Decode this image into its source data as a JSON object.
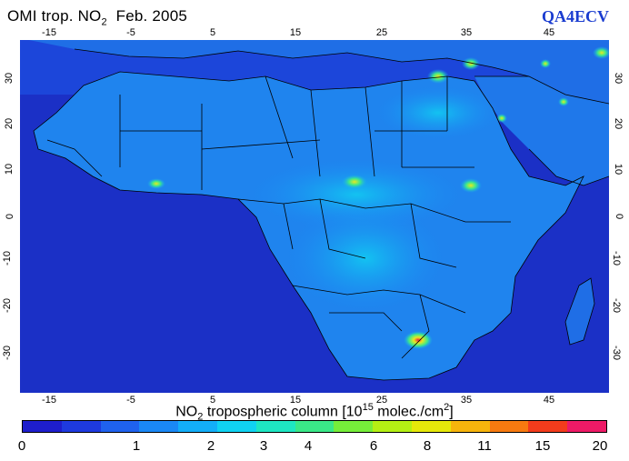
{
  "header": {
    "title_prefix": "OMI trop. NO",
    "title_sub": "2",
    "title_suffix": "  Feb. 2005",
    "brand": "QA4ECV"
  },
  "map": {
    "lon_ticks": [
      "-15",
      "-5",
      "5",
      "15",
      "25",
      "35",
      "45"
    ],
    "lat_ticks": [
      "30",
      "20",
      "10",
      "0",
      "-10",
      "-20",
      "-30"
    ]
  },
  "colorbar": {
    "label_prefix": "NO",
    "label_sub": "2",
    "label_mid": " tropospheric column [10",
    "label_sup": "15",
    "label_mid2": " molec./cm",
    "label_sup2": "2",
    "label_suffix": "]",
    "tick_labels": [
      "0",
      "1",
      "2",
      "3",
      "4",
      "6",
      "8",
      "11",
      "15",
      "20"
    ],
    "colors": [
      "#1e1ecc",
      "#1e3adf",
      "#1f62ee",
      "#1a88f5",
      "#13aef8",
      "#10d2f2",
      "#1ee6c2",
      "#3ae888",
      "#76ee3a",
      "#b4f014",
      "#e6e80a",
      "#f6b40c",
      "#f77a10",
      "#f33c1c",
      "#ee1a66"
    ]
  },
  "colors": {
    "ocean": "#1a2ec8",
    "land": "#1f7ae8",
    "hotspot": "#e8e820",
    "hotspot_high": "#ee2244",
    "border": "#000000"
  }
}
